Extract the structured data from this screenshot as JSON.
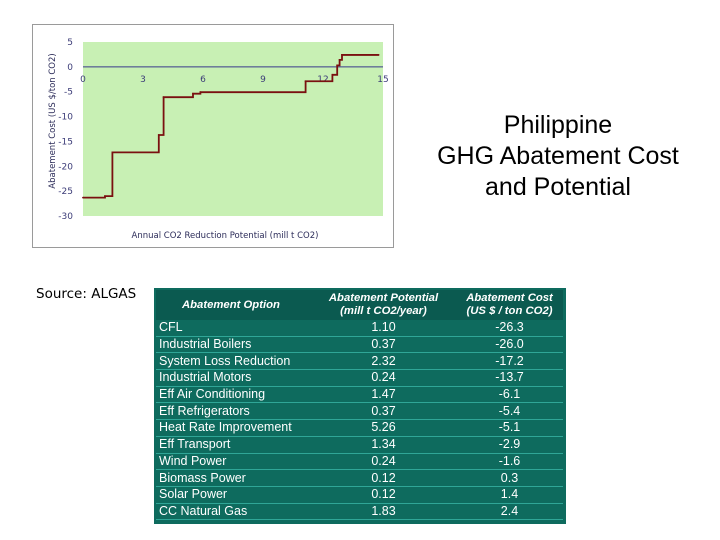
{
  "colors": {
    "plot_background": "#c8f0b4",
    "curve": "#7a1010",
    "zero_line": "#3a3a8a",
    "table_background": "#0e6b5e",
    "table_text": "#ffffff"
  },
  "chart_data": {
    "type": "line",
    "step": true,
    "xlabel": "Annual CO2 Reduction Potential (mill t CO2)",
    "ylabel": "Abatement Cost (US $/ton CO2)",
    "xlim": [
      0,
      15
    ],
    "ylim": [
      -30,
      5
    ],
    "x_ticks": [
      "0",
      "3",
      "6",
      "9",
      "12",
      "15"
    ],
    "y_ticks": [
      "5",
      "0",
      "-5",
      "-10",
      "-15",
      "-20",
      "-25",
      "-30"
    ],
    "grid": false,
    "series": [
      {
        "x": [
          0,
          1.1,
          1.47,
          3.79,
          4.03,
          5.5,
          5.87,
          11.13,
          12.47,
          12.71,
          12.83,
          12.95,
          14.78
        ],
        "y": [
          -26.3,
          -26.0,
          -17.2,
          -13.7,
          -6.1,
          -5.4,
          -5.1,
          -2.9,
          -1.6,
          0.3,
          1.4,
          2.4,
          2.4
        ]
      }
    ]
  },
  "title_lines": [
    "Philippine",
    "GHG Abatement Cost",
    "and Potential"
  ],
  "source": "Source:  ALGAS",
  "table": {
    "headers": {
      "option": "Abatement Option",
      "potential_line1": "Abatement Potential",
      "potential_line2": "(mill t CO2/year)",
      "cost_line1": "Abatement Cost",
      "cost_line2": "(US $ / ton CO2)"
    },
    "rows": [
      {
        "option": "CFL",
        "potential": "1.10",
        "cost": "-26.3"
      },
      {
        "option": "Industrial Boilers",
        "potential": "0.37",
        "cost": "-26.0"
      },
      {
        "option": "System Loss Reduction",
        "potential": "2.32",
        "cost": "-17.2"
      },
      {
        "option": "Industrial Motors",
        "potential": "0.24",
        "cost": "-13.7"
      },
      {
        "option": "Eff Air Conditioning",
        "potential": "1.47",
        "cost": "-6.1"
      },
      {
        "option": "Eff Refrigerators",
        "potential": "0.37",
        "cost": "-5.4"
      },
      {
        "option": "Heat Rate Improvement",
        "potential": "5.26",
        "cost": "-5.1"
      },
      {
        "option": "Eff Transport",
        "potential": "1.34",
        "cost": "-2.9"
      },
      {
        "option": "Wind Power",
        "potential": "0.24",
        "cost": "-1.6"
      },
      {
        "option": "Biomass Power",
        "potential": "0.12",
        "cost": "0.3"
      },
      {
        "option": "Solar Power",
        "potential": "0.12",
        "cost": "1.4"
      },
      {
        "option": "CC Natural Gas",
        "potential": "1.83",
        "cost": "2.4"
      }
    ]
  }
}
